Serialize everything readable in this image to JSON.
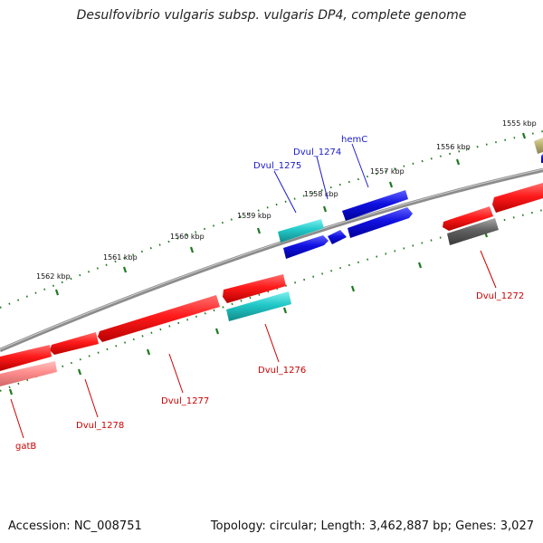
{
  "title": "Desulfovibrio vulgaris subsp. vulgaris DP4, complete genome",
  "footer": {
    "accession": "Accession: NC_008751",
    "topology": "Topology: circular; Length: 3,462,887 bp; Genes: 3,027"
  },
  "colors": {
    "backbone": "#8c8c8c",
    "tick": "#1f7a1f",
    "forward_gene": "#ff1a1a",
    "reverse_gene": "#1010e0",
    "cyan_gene": "#22c8c8",
    "grey_gene": "#606060",
    "pink_gene": "#ff8c8c",
    "olive_gene": "#b8b070",
    "red_label": "#cc0000",
    "blue_label": "#1a1acc"
  },
  "scale_labels": [
    "1555 kbp",
    "1556 kbp",
    "1557 kbp",
    "1558 kbp",
    "1559 kbp",
    "1560 kbp",
    "1561 kbp",
    "1562 kbp"
  ],
  "gene_labels": {
    "hemC": "hemC",
    "dvul1274": "Dvul_1274",
    "dvul1275": "Dvul_1275",
    "dvul1272": "Dvul_1272",
    "dvul1276": "Dvul_1276",
    "dvul1277": "Dvul_1277",
    "dvul1278": "Dvul_1278",
    "gatB": "gatB"
  }
}
